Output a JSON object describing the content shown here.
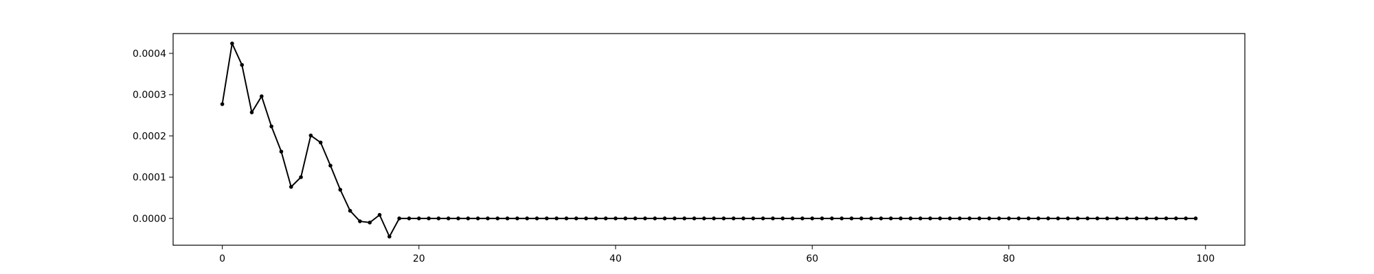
{
  "chart_data": {
    "type": "line",
    "title": "",
    "xlabel": "",
    "ylabel": "",
    "xlim": [
      -5,
      104
    ],
    "ylim": [
      -6.5e-05,
      0.000448
    ],
    "grid": false,
    "legend": "none",
    "line_color": "#000000",
    "marker": "dot",
    "x_ticks": [
      {
        "value": 0,
        "label": "0"
      },
      {
        "value": 20,
        "label": "20"
      },
      {
        "value": 40,
        "label": "40"
      },
      {
        "value": 60,
        "label": "60"
      },
      {
        "value": 80,
        "label": "80"
      },
      {
        "value": 100,
        "label": "100"
      }
    ],
    "y_ticks": [
      {
        "value": 0.0,
        "label": "0.0000"
      },
      {
        "value": 0.0001,
        "label": "0.0001"
      },
      {
        "value": 0.0002,
        "label": "0.0002"
      },
      {
        "value": 0.0003,
        "label": "0.0003"
      },
      {
        "value": 0.0004,
        "label": "0.0004"
      }
    ],
    "series": [
      {
        "x": [
          0,
          1,
          2,
          3,
          4,
          5,
          6,
          7,
          8,
          9,
          10,
          11,
          12,
          13,
          14,
          15,
          16,
          17,
          18,
          19,
          20,
          21,
          22,
          23,
          24,
          25,
          26,
          27,
          28,
          29,
          30,
          31,
          32,
          33,
          34,
          35,
          36,
          37,
          38,
          39,
          40,
          41,
          42,
          43,
          44,
          45,
          46,
          47,
          48,
          49,
          50,
          51,
          52,
          53,
          54,
          55,
          56,
          57,
          58,
          59,
          60,
          61,
          62,
          63,
          64,
          65,
          66,
          67,
          68,
          69,
          70,
          71,
          72,
          73,
          74,
          75,
          76,
          77,
          78,
          79,
          80,
          81,
          82,
          83,
          84,
          85,
          86,
          87,
          88,
          89,
          90,
          91,
          92,
          93,
          94,
          95,
          96,
          97,
          98,
          99
        ],
        "values": [
          0.000277,
          0.000424,
          0.000372,
          0.000257,
          0.000296,
          0.000223,
          0.000162,
          7.65e-05,
          0.0001,
          0.000201,
          0.000184,
          0.000128,
          6.95e-05,
          1.85e-05,
          -7e-06,
          -1e-05,
          8.5e-06,
          -4.4e-05,
          0.0,
          0.0,
          0.0,
          0.0,
          0.0,
          0.0,
          0.0,
          0.0,
          0.0,
          0.0,
          0.0,
          0.0,
          0.0,
          0.0,
          0.0,
          0.0,
          0.0,
          0.0,
          0.0,
          0.0,
          0.0,
          0.0,
          0.0,
          0.0,
          0.0,
          0.0,
          0.0,
          0.0,
          0.0,
          0.0,
          0.0,
          0.0,
          0.0,
          0.0,
          0.0,
          0.0,
          0.0,
          0.0,
          0.0,
          0.0,
          0.0,
          0.0,
          0.0,
          0.0,
          0.0,
          0.0,
          0.0,
          0.0,
          0.0,
          0.0,
          0.0,
          0.0,
          0.0,
          0.0,
          0.0,
          0.0,
          0.0,
          0.0,
          0.0,
          0.0,
          0.0,
          0.0,
          0.0,
          0.0,
          0.0,
          0.0,
          0.0,
          0.0,
          0.0,
          0.0,
          0.0,
          0.0,
          0.0,
          0.0,
          0.0,
          0.0,
          0.0,
          0.0,
          0.0,
          0.0,
          0.0,
          0.0
        ]
      }
    ]
  }
}
